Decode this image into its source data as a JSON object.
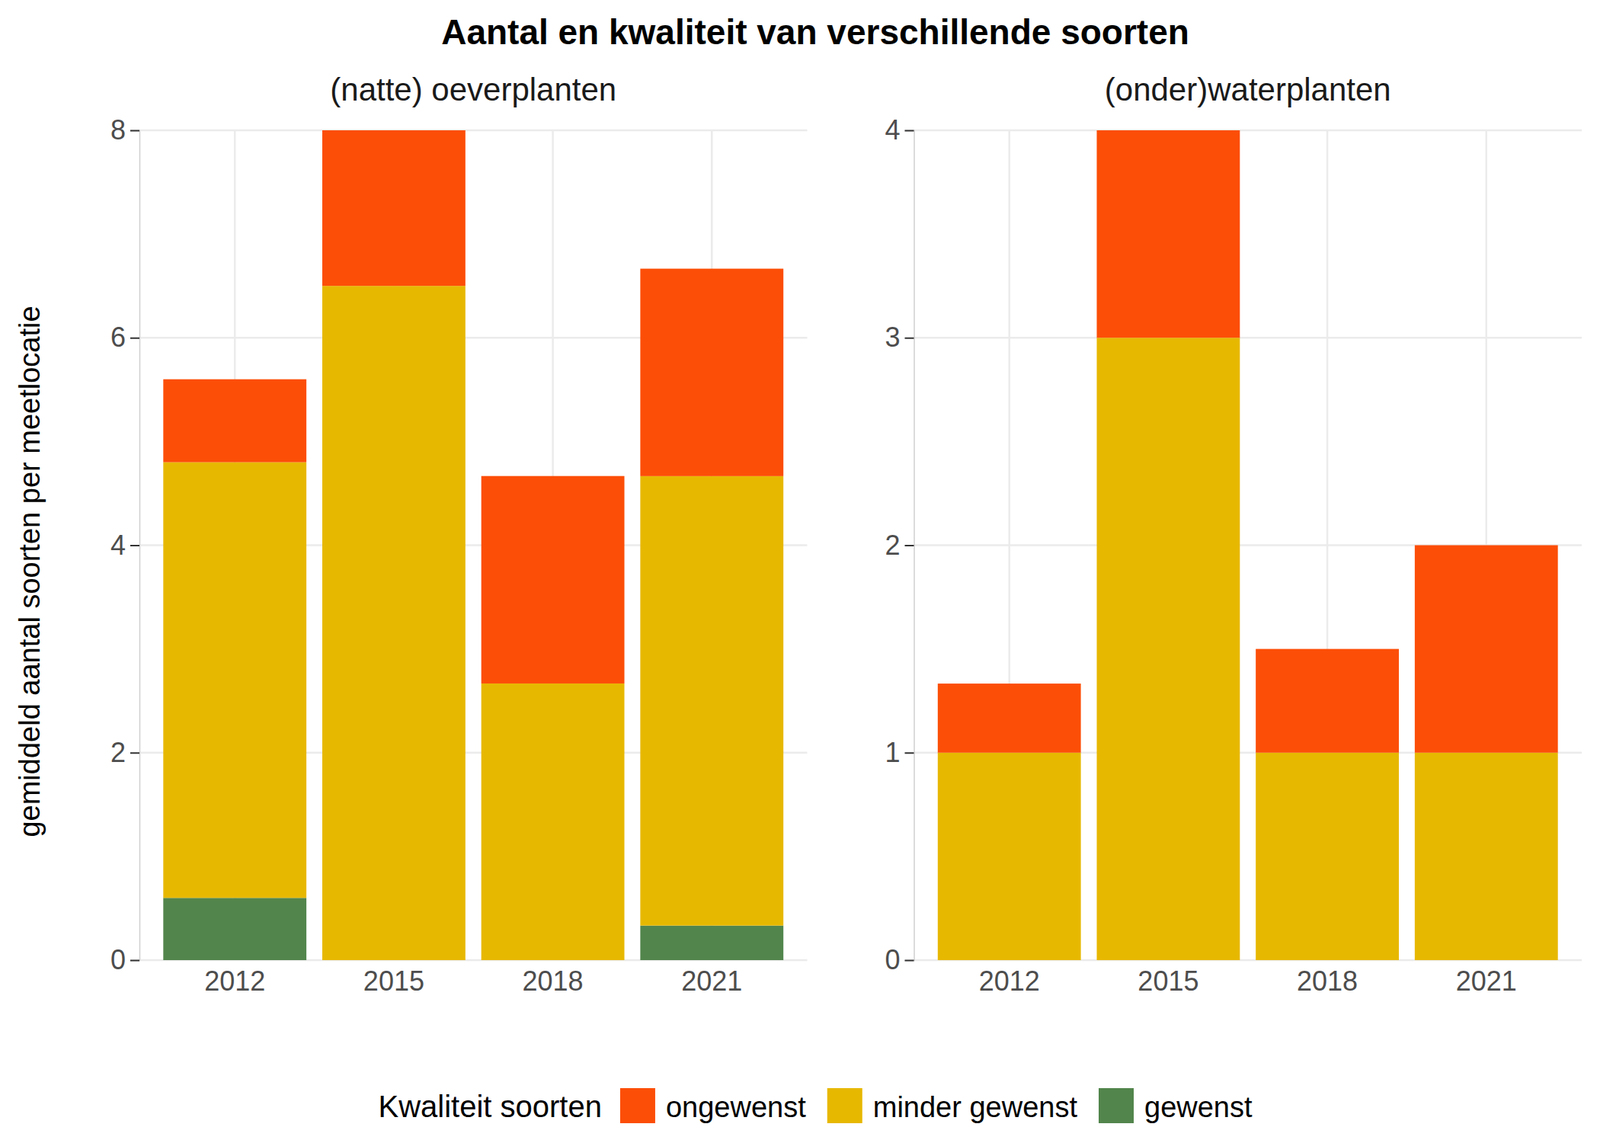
{
  "title": "Aantal en kwaliteit van verschillende soorten",
  "y_label": "gemiddeld aantal soorten per meetlocatie",
  "legend_title": "Kwaliteit soorten",
  "chart_data": [
    {
      "type": "bar",
      "stacked": true,
      "grid": true,
      "subtitle": "(natte) oeverplanten",
      "categories": [
        "2012",
        "2015",
        "2018",
        "2021"
      ],
      "series": [
        {
          "name": "ongewenst",
          "color": "#FC4E07",
          "values": [
            0.8,
            1.5,
            2.0,
            2.0
          ]
        },
        {
          "name": "minder gewenst",
          "color": "#E7B800",
          "values": [
            4.2,
            6.5,
            2.667,
            4.333
          ]
        },
        {
          "name": "gewenst",
          "color": "#52854C",
          "values": [
            0.6,
            0,
            0,
            0.333
          ]
        }
      ],
      "ylim": [
        0,
        8
      ],
      "yticks": [
        0,
        2,
        4,
        6,
        8
      ]
    },
    {
      "type": "bar",
      "stacked": true,
      "grid": true,
      "subtitle": "(onder)waterplanten",
      "categories": [
        "2012",
        "2015",
        "2018",
        "2021"
      ],
      "series": [
        {
          "name": "ongewenst",
          "color": "#FC4E07",
          "values": [
            0.333,
            1.0,
            0.5,
            1.0
          ]
        },
        {
          "name": "minder gewenst",
          "color": "#E7B800",
          "values": [
            1.0,
            3.0,
            1.0,
            1.0
          ]
        }
      ],
      "ylim": [
        0,
        4
      ],
      "yticks": [
        0,
        1,
        2,
        3,
        4
      ]
    }
  ]
}
